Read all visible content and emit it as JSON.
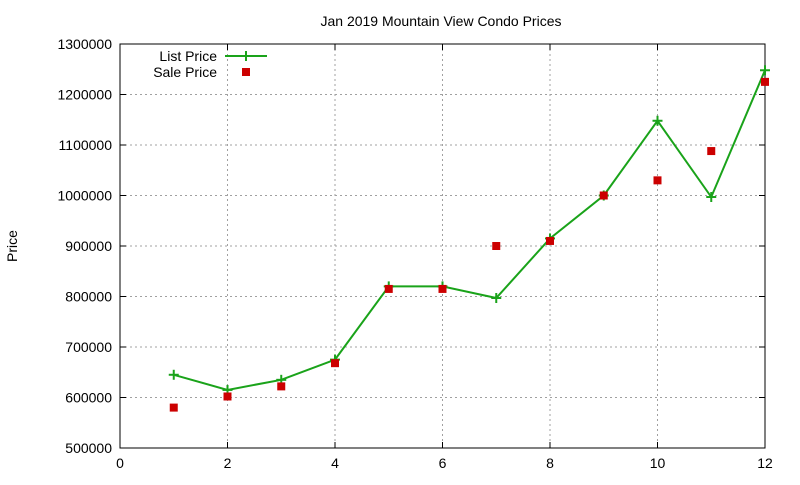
{
  "chart_data": {
    "type": "line",
    "title": "Jan 2019 Mountain View Condo Prices",
    "xlabel": "",
    "ylabel": "Price",
    "xlim": [
      0,
      12
    ],
    "ylim": [
      500000,
      1300000
    ],
    "x_ticks": [
      0,
      2,
      4,
      6,
      8,
      10,
      12
    ],
    "y_ticks": [
      500000,
      600000,
      700000,
      800000,
      900000,
      1000000,
      1100000,
      1200000,
      1300000
    ],
    "grid": true,
    "legend_position": "top-left",
    "series": [
      {
        "name": "List Price",
        "style": "line-plus",
        "color": "#1aa31a",
        "points": [
          [
            1,
            645000
          ],
          [
            2,
            615000
          ],
          [
            3,
            635000
          ],
          [
            4,
            675000
          ],
          [
            5,
            820000
          ],
          [
            6,
            820000
          ],
          [
            7,
            797000
          ],
          [
            8,
            915000
          ],
          [
            9,
            1000000
          ],
          [
            10,
            1148000
          ],
          [
            11,
            997000
          ],
          [
            12,
            1248000
          ]
        ]
      },
      {
        "name": "Sale Price",
        "style": "square-markers",
        "color": "#cc0000",
        "points": [
          [
            1,
            580000
          ],
          [
            2,
            602000
          ],
          [
            3,
            622000
          ],
          [
            4,
            668000
          ],
          [
            5,
            815000
          ],
          [
            6,
            815000
          ],
          [
            7,
            900000
          ],
          [
            8,
            910000
          ],
          [
            9,
            1000000
          ],
          [
            10,
            1030000
          ],
          [
            11,
            1088000
          ],
          [
            12,
            1225000
          ]
        ]
      }
    ]
  }
}
